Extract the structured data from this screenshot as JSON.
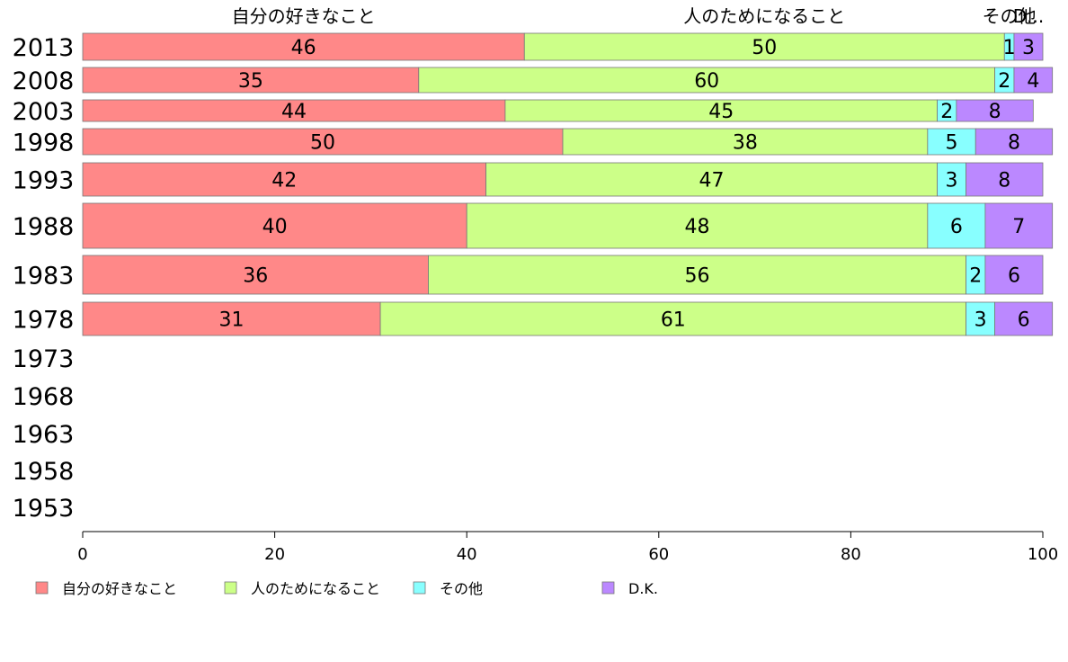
{
  "chart_data": {
    "type": "bar",
    "orientation": "horizontal",
    "stacked": true,
    "title": "",
    "xlabel": "",
    "ylabel": "",
    "xlim": [
      0,
      100
    ],
    "x_ticks": [
      0,
      20,
      40,
      60,
      80,
      100
    ],
    "legend_position": "bottom-left",
    "grid": false,
    "categories": [
      "2013",
      "2008",
      "2003",
      "1998",
      "1993",
      "1988",
      "1983",
      "1978",
      "1973",
      "1968",
      "1963",
      "1958",
      "1953"
    ],
    "column_headers": [
      "自分の好きなこと",
      "人のためになること",
      "その他",
      "D..."
    ],
    "series": [
      {
        "name": "自分の好きなこと",
        "color": "#ff8888",
        "values": [
          46,
          35,
          44,
          50,
          42,
          40,
          36,
          31,
          null,
          null,
          null,
          null,
          null
        ]
      },
      {
        "name": "人のためになること",
        "color": "#ccff88",
        "values": [
          50,
          60,
          45,
          38,
          47,
          48,
          56,
          61,
          null,
          null,
          null,
          null,
          null
        ]
      },
      {
        "name": "その他",
        "color": "#88ffff",
        "values": [
          1,
          2,
          2,
          5,
          3,
          6,
          2,
          3,
          null,
          null,
          null,
          null,
          null
        ]
      },
      {
        "name": "D.K.",
        "color": "#bb88ff",
        "values": [
          3,
          4,
          8,
          8,
          8,
          7,
          6,
          6,
          null,
          null,
          null,
          null,
          null
        ]
      }
    ]
  }
}
